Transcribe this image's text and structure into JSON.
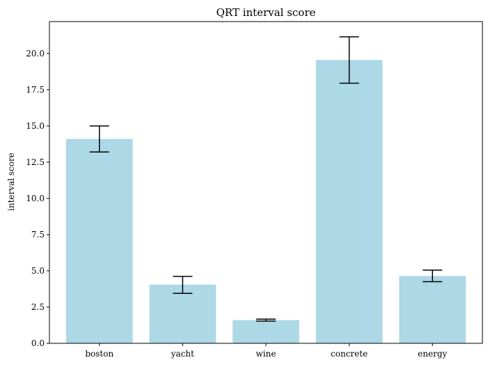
{
  "chart_data": {
    "type": "bar",
    "title": "QRT interval score",
    "xlabel": "",
    "ylabel": "interval score",
    "categories": [
      "boston",
      "yacht",
      "wine",
      "concrete",
      "energy"
    ],
    "values": [
      14.1,
      4.05,
      1.6,
      19.55,
      4.65
    ],
    "errors": [
      {
        "low": 13.2,
        "high": 15.0
      },
      {
        "low": 3.45,
        "high": 4.62
      },
      {
        "low": 1.53,
        "high": 1.67
      },
      {
        "low": 17.95,
        "high": 21.15
      },
      {
        "low": 4.25,
        "high": 5.05
      }
    ],
    "ylim": [
      0,
      22.2
    ],
    "yticks": [
      0.0,
      2.5,
      5.0,
      7.5,
      10.0,
      12.5,
      15.0,
      17.5,
      20.0
    ],
    "ytick_labels": [
      "0.0",
      "2.5",
      "5.0",
      "7.5",
      "10.0",
      "12.5",
      "15.0",
      "17.5",
      "20.0"
    ],
    "bar_color": "#add8e6",
    "error_color": "#000000",
    "grid": false,
    "legend": "none"
  }
}
